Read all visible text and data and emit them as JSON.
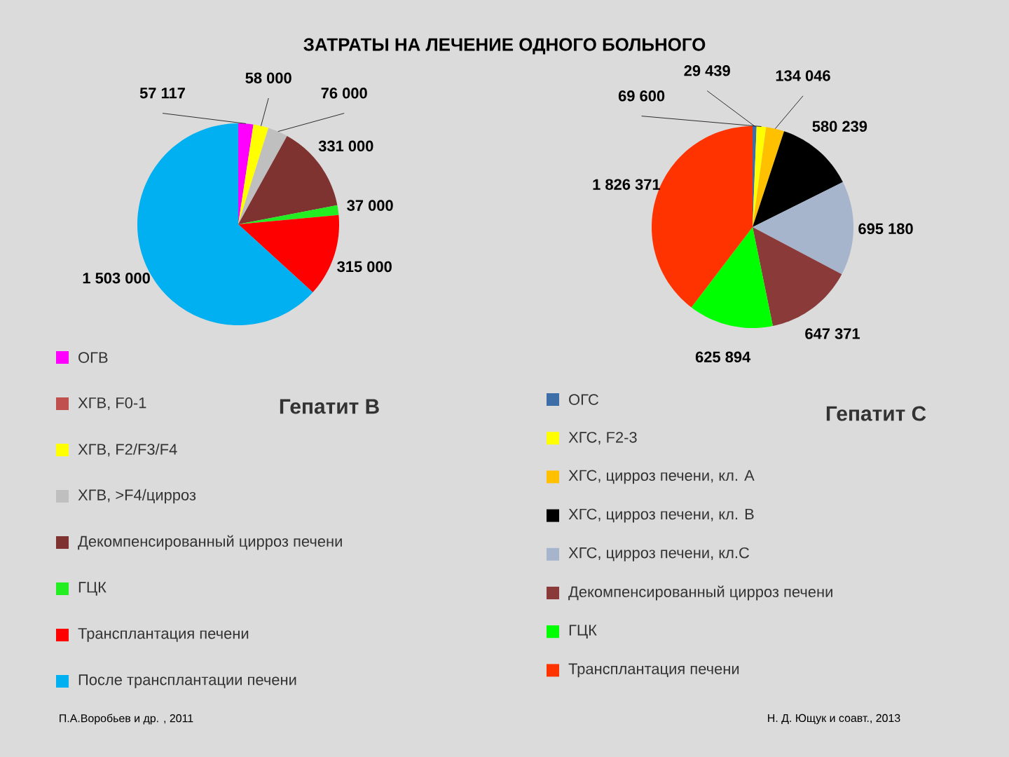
{
  "chart_data": [
    {
      "type": "pie",
      "title": "ЗАТРАТЫ НА ЛЕЧЕНИЕ ОДНОГО БОЛЬНОГО",
      "subtitle": "Гепатит В",
      "categories": [
        "ОГВ",
        "ХГВ, F0-1",
        "ХГВ, F2/F3/F4",
        "ХГВ, >F4/цирроз",
        "Декомпенсированный цирроз печени",
        "ГЦК",
        "Трансплантация печени",
        "После трансплантации печени"
      ],
      "values": [
        57117,
        null,
        58000,
        76000,
        331000,
        37000,
        315000,
        1503000
      ],
      "colors": [
        "#ff00ff",
        "#c0504d",
        "#ffff00",
        "#bfbfbf",
        "#7f3330",
        "#22ee22",
        "#ff0000",
        "#00b0f0"
      ],
      "data_labels": true,
      "legend": "bottom",
      "annotations": [
        "П.А.Воробьев и др. , 2011"
      ]
    },
    {
      "type": "pie",
      "subtitle": "Гепатит С",
      "categories": [
        "ОГС",
        "ХГС, F2-3",
        "ХГС, цирроз печени, кл. А",
        "ХГС, цирроз печени, кл. В",
        "ХГС, цирроз печени, кл.С",
        "Декомпенсированный цирроз печени",
        "ГЦК",
        "Трансплантация печени"
      ],
      "values": [
        29439,
        69600,
        134046,
        580239,
        695180,
        647371,
        625894,
        1826371
      ],
      "colors": [
        "#3d6ea8",
        "#ffff00",
        "#ffc000",
        "#000000",
        "#a6b4cc",
        "#8b3a3a",
        "#00ff00",
        "#ff3300"
      ],
      "data_labels": true,
      "legend": "bottom",
      "annotations": [
        "Н. Д. Ющук и соавт., 2013"
      ]
    }
  ]
}
